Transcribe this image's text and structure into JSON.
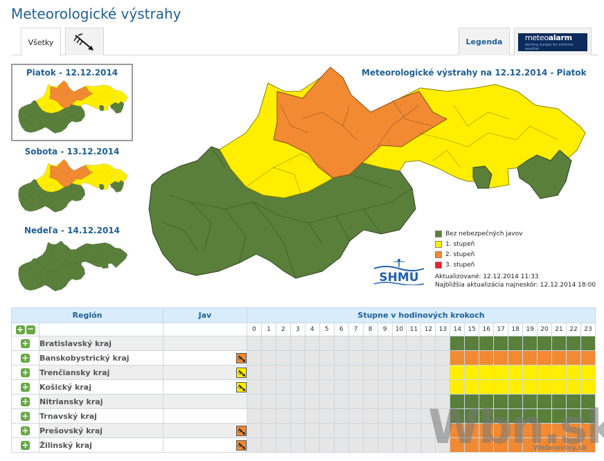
{
  "page": {
    "title": "Meteorologické výstrahy"
  },
  "tabs": {
    "all_label": "Všetky",
    "wind_icon": "wind-icon",
    "legend_label": "Legenda",
    "meteoalarm_line1_a": "meteo",
    "meteoalarm_line1_b": "alarm",
    "meteoalarm_line2": "alerting europe for extreme weather"
  },
  "days": [
    {
      "label": "Piatok - 12.12.2014",
      "selected": true
    },
    {
      "label": "Sobota - 13.12.2014",
      "selected": false
    },
    {
      "label": "Nedeľa - 14.12.2014",
      "selected": false
    }
  ],
  "main_map": {
    "title": "Meteorologické výstrahy na 12.12.2014 - Piatok"
  },
  "legend": {
    "items": [
      {
        "label": "Bez nebezpečných javov",
        "color": "#5a7f3b"
      },
      {
        "label": "1. stupeň",
        "color": "#ffee00"
      },
      {
        "label": "2. stupeň",
        "color": "#f18a32"
      },
      {
        "label": "3. stupeň",
        "color": "#e8212a"
      }
    ]
  },
  "logo": {
    "text": "SHMÚ"
  },
  "updated": {
    "line1": "Aktualizované: 12.12.2014 11:33",
    "line2": "Najbližšia aktualizácia najneskôr: 12.12.2014 18:00"
  },
  "table": {
    "headers": {
      "region": "Región",
      "jav": "Jav",
      "stupne": "Stupne v hodinových krokoch"
    },
    "hours": [
      "0",
      "1",
      "2",
      "3",
      "4",
      "5",
      "6",
      "7",
      "8",
      "9",
      "10",
      "11",
      "12",
      "13",
      "14",
      "15",
      "16",
      "17",
      "18",
      "19",
      "20",
      "21",
      "22",
      "23"
    ],
    "first_data_hour": 14,
    "rows": [
      {
        "region": "Bratislavský kraj",
        "warning": null,
        "level": 0
      },
      {
        "region": "Banskobystrický kraj",
        "warning": "orange",
        "level": 2
      },
      {
        "region": "Trenčiansky kraj",
        "warning": "yellow",
        "level": 1
      },
      {
        "region": "Košický kraj",
        "warning": "yellow",
        "level": 1
      },
      {
        "region": "Nitriansky kraj",
        "warning": null,
        "level": 0
      },
      {
        "region": "Trnavský kraj",
        "warning": null,
        "level": 0
      },
      {
        "region": "Prešovský kraj",
        "warning": "orange",
        "level": 2
      },
      {
        "region": "Žilinský kraj",
        "warning": "orange",
        "level": 2
      }
    ]
  },
  "watermark": {
    "main": "Wbn.sk",
    "sub": "Webnoviny.sk"
  }
}
